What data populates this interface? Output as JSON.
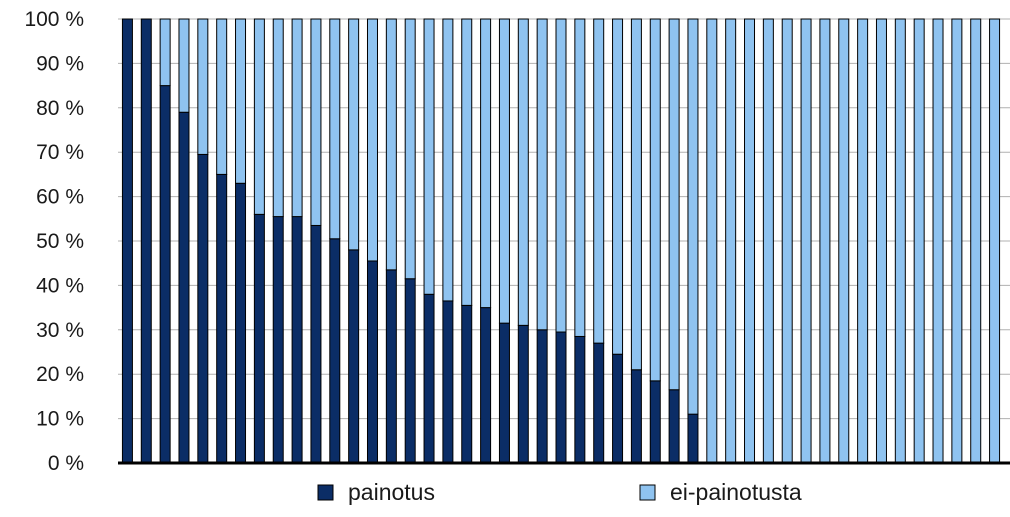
{
  "chart_data": {
    "type": "bar",
    "stacked": true,
    "title": "",
    "xlabel": "",
    "ylabel": "",
    "ylim": [
      0,
      100
    ],
    "yticks": [
      {
        "value": 0,
        "label": "0 %"
      },
      {
        "value": 10,
        "label": "10 %"
      },
      {
        "value": 20,
        "label": "20 %"
      },
      {
        "value": 30,
        "label": "30 %"
      },
      {
        "value": 40,
        "label": "40 %"
      },
      {
        "value": 50,
        "label": "50 %"
      },
      {
        "value": 60,
        "label": "60 %"
      },
      {
        "value": 70,
        "label": "70 %"
      },
      {
        "value": 80,
        "label": "80 %"
      },
      {
        "value": 90,
        "label": "90 %"
      },
      {
        "value": 100,
        "label": "100 %"
      }
    ],
    "grid": true,
    "legend_position": "bottom",
    "series": [
      {
        "name": "painotus",
        "color": "#0b2d66",
        "values": [
          100,
          100,
          85,
          79,
          69.5,
          65,
          63,
          56,
          55.5,
          55.5,
          53.5,
          50.5,
          48,
          45.5,
          43.5,
          41.5,
          38,
          36.5,
          35.5,
          35,
          31.5,
          31,
          30,
          29.5,
          28.5,
          27,
          24.5,
          21,
          18.5,
          16.5,
          11,
          0,
          0,
          0,
          0,
          0,
          0,
          0,
          0,
          0,
          0,
          0,
          0,
          0,
          0,
          0,
          0
        ]
      },
      {
        "name": "ei-painotusta",
        "color": "#8fc3f0",
        "values": [
          0,
          0,
          15,
          21,
          30.5,
          35,
          37,
          44,
          44.5,
          44.5,
          46.5,
          49.5,
          52,
          54.5,
          56.5,
          58.5,
          62,
          63.5,
          64.5,
          65,
          68.5,
          69,
          70,
          70.5,
          71.5,
          73,
          75.5,
          79,
          81.5,
          83.5,
          89,
          100,
          100,
          100,
          100,
          100,
          100,
          100,
          100,
          100,
          100,
          100,
          100,
          100,
          100,
          100,
          100
        ]
      }
    ]
  }
}
